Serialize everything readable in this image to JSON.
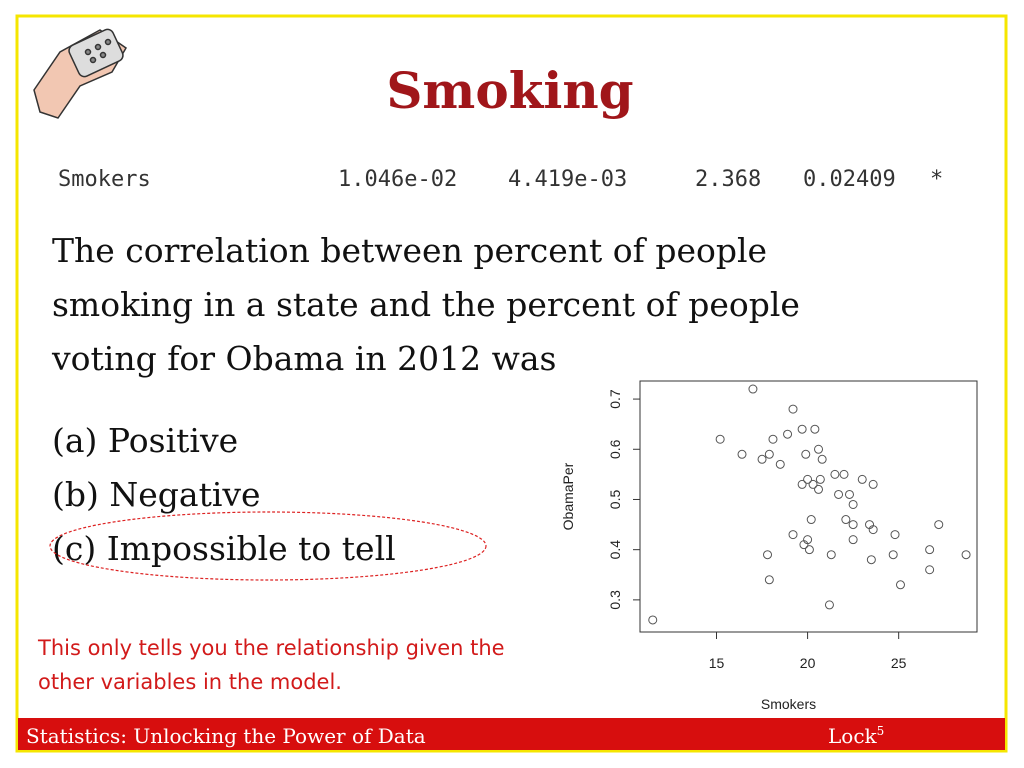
{
  "header": {
    "title": "Smoking"
  },
  "regression_row": [
    "Smokers",
    "1.046e-02",
    "4.419e-03",
    "2.368",
    "0.02409",
    "*"
  ],
  "question": [
    "The correlation between percent of people",
    "smoking in a state and the percent of people",
    "voting for Obama in 2012 was"
  ],
  "options": [
    "(a) Positive",
    "(b) Negative",
    "(c) Impossible to tell"
  ],
  "note": [
    "This only tells you the relationship given the",
    "other variables in the model."
  ],
  "footer": {
    "left": "Statistics: Unlocking the Power of Data",
    "right": "Lock",
    "right_superscript": "5"
  },
  "chart_data": {
    "type": "scatter",
    "x_label": "Smokers",
    "y_label": "ObamaPer",
    "color": "#555555",
    "x": [
      11.5,
      15.2,
      16.4,
      17.0,
      17.5,
      17.9,
      18.1,
      18.5,
      18.9,
      19.2,
      19.7,
      20.4,
      20.6,
      20.8,
      19.9,
      20.0,
      19.7,
      20.3,
      20.6,
      20.7,
      21.5,
      22.0,
      21.7,
      22.3,
      22.5,
      23.0,
      23.6,
      22.1,
      22.5,
      23.4,
      23.6,
      20.2,
      19.2,
      20.0,
      19.8,
      20.1,
      22.5,
      21.3,
      23.5,
      17.8,
      17.9,
      21.2,
      24.8,
      24.7,
      25.1,
      26.7,
      26.7,
      27.2,
      28.7
    ],
    "values": [
      0.26,
      0.62,
      0.59,
      0.72,
      0.58,
      0.59,
      0.62,
      0.57,
      0.63,
      0.68,
      0.64,
      0.64,
      0.6,
      0.58,
      0.59,
      0.54,
      0.53,
      0.53,
      0.52,
      0.54,
      0.55,
      0.55,
      0.51,
      0.51,
      0.49,
      0.54,
      0.53,
      0.46,
      0.45,
      0.45,
      0.44,
      0.46,
      0.43,
      0.42,
      0.41,
      0.4,
      0.42,
      0.39,
      0.38,
      0.39,
      0.34,
      0.29,
      0.43,
      0.39,
      0.33,
      0.4,
      0.36,
      0.45,
      0.39
    ],
    "xlim": [
      10.8,
      29.3
    ],
    "ylim": [
      0.236,
      0.736
    ],
    "xticks": [
      15,
      20,
      25
    ],
    "yticks": [
      0.3,
      0.4,
      0.5,
      0.6,
      0.7
    ]
  }
}
